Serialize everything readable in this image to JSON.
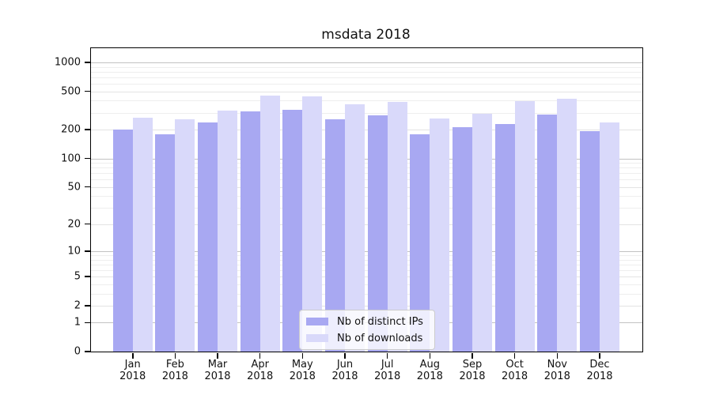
{
  "title": "msdata 2018",
  "legend": {
    "position": "lower center",
    "items": [
      {
        "label": "Nb of distinct IPs",
        "color": "#a8a8f2"
      },
      {
        "label": "Nb of downloads",
        "color": "#d9d9fa"
      }
    ]
  },
  "axes": {
    "ytick_labels": [
      "0",
      "1",
      "2",
      "5",
      "10",
      "20",
      "50",
      "100",
      "200",
      "500",
      "1000"
    ],
    "xtick_year": "2018"
  },
  "chart_data": {
    "type": "bar",
    "title": "msdata 2018",
    "xlabel": "",
    "ylabel": "",
    "yscale": "log1p",
    "ylim": [
      0,
      1420
    ],
    "grid": true,
    "legend_position": "lower center",
    "yticks": [
      0,
      1,
      2,
      5,
      10,
      20,
      50,
      100,
      200,
      500,
      1000
    ],
    "categories": [
      "Jan",
      "Feb",
      "Mar",
      "Apr",
      "May",
      "Jun",
      "Jul",
      "Aug",
      "Sep",
      "Oct",
      "Nov",
      "Dec"
    ],
    "category_year": "2018",
    "series": [
      {
        "name": "Nb of distinct IPs",
        "color": "#a8a8f2",
        "values": [
          200,
          179,
          236,
          307,
          319,
          254,
          284,
          177,
          210,
          230,
          288,
          194
        ]
      },
      {
        "name": "Nb of downloads",
        "color": "#d9d9fa",
        "values": [
          264,
          257,
          317,
          456,
          445,
          369,
          388,
          263,
          290,
          398,
          421,
          237
        ]
      }
    ]
  }
}
